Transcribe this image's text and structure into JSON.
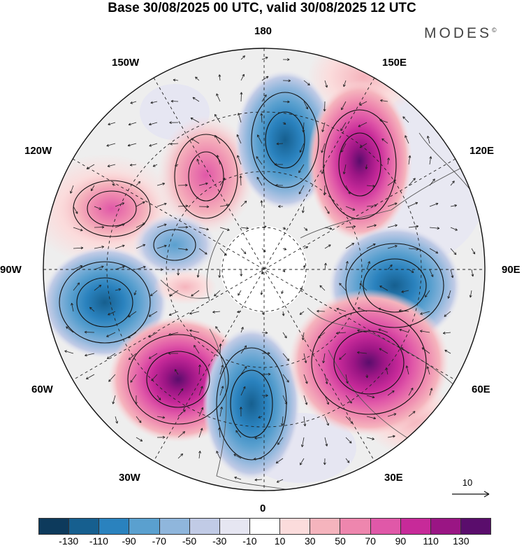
{
  "title": "Base 30/08/2025 00 UTC, valid 30/08/2025 12 UTC",
  "brand": "MODES",
  "brand_mark": "©",
  "map_labels": {
    "lon_180": "180",
    "lon_150w": "150W",
    "lon_150e": "150E",
    "lon_120w": "120W",
    "lon_120e": "120E",
    "lon_90w": "90W",
    "lon_90e": "90E",
    "lon_60w": "60W",
    "lon_60e": "60E",
    "lon_30w": "30W",
    "lon_30e": "30E",
    "lon_0": "0"
  },
  "vector_reference": "10",
  "colorbar": {
    "colors": [
      "#0d3a5c",
      "#165f8f",
      "#2a82be",
      "#5aa0cf",
      "#8fb6dc",
      "#c1cbe6",
      "#e6e6f2",
      "#ffffff",
      "#fbdcdc",
      "#f5b4bd",
      "#ee86ae",
      "#e058a8",
      "#c72a99",
      "#9a1584",
      "#5a0d6c"
    ],
    "ticks": [
      "-130",
      "-110",
      "-90",
      "-70",
      "-50",
      "-30",
      "-10",
      "10",
      "30",
      "50",
      "70",
      "90",
      "110",
      "130"
    ]
  }
}
